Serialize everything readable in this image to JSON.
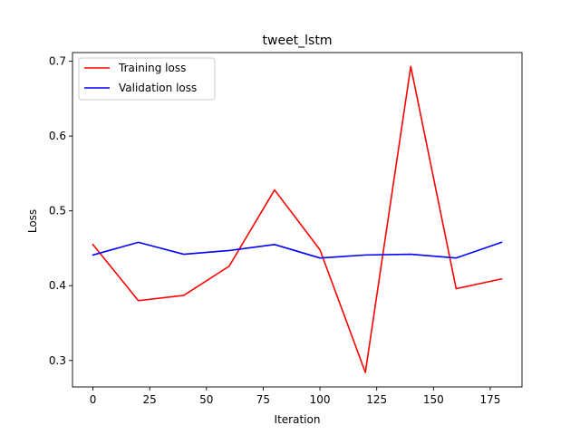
{
  "chart_data": {
    "type": "line",
    "title": "tweet_lstm",
    "xlabel": "Iteration",
    "ylabel": "Loss",
    "xlim": [
      -9,
      189
    ],
    "ylim": [
      0.2646,
      0.7116
    ],
    "xticks": [
      0,
      25,
      50,
      75,
      100,
      125,
      150,
      175
    ],
    "yticks": [
      0.3,
      0.4,
      0.5,
      0.6,
      0.7
    ],
    "ytick_labels": [
      "0.3",
      "0.4",
      "0.5",
      "0.6",
      "0.7"
    ],
    "grid": false,
    "legend": "top-left",
    "x": [
      0,
      20,
      40,
      60,
      80,
      100,
      120,
      140,
      160,
      180
    ],
    "series": [
      {
        "name": "Training loss",
        "color": "#ff0000",
        "values": [
          0.455,
          0.38,
          0.387,
          0.426,
          0.528,
          0.448,
          0.284,
          0.693,
          0.396,
          0.409
        ]
      },
      {
        "name": "Validation loss",
        "color": "#0000ff",
        "values": [
          0.441,
          0.458,
          0.442,
          0.447,
          0.455,
          0.437,
          0.441,
          0.442,
          0.437,
          0.458
        ]
      }
    ]
  }
}
